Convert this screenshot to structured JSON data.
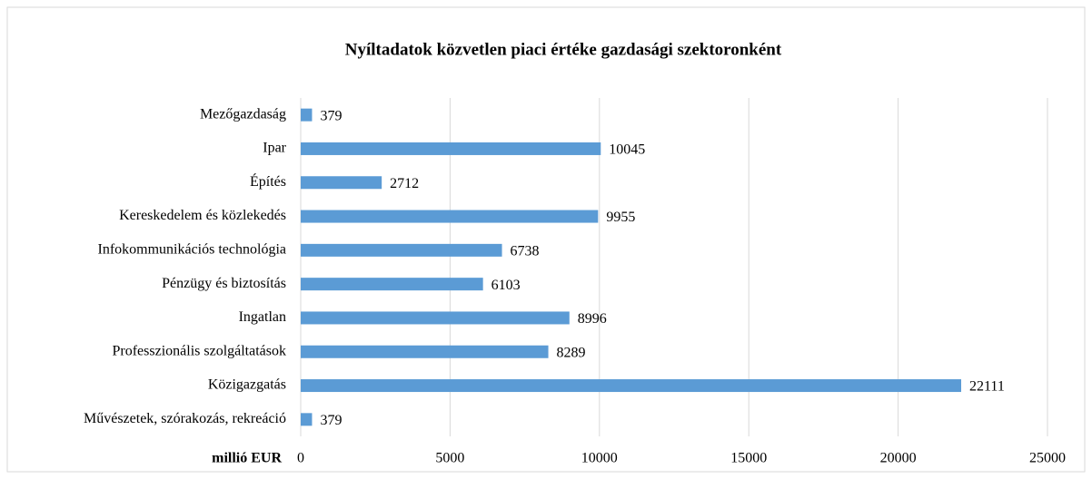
{
  "chart_data": {
    "type": "bar",
    "orientation": "horizontal",
    "title": "Nyíltadatok közvetlen piaci értéke gazdasági szektoronként",
    "xlabel": "millió EUR",
    "categories": [
      "Mezőgazdaság",
      "Ipar",
      "Építés",
      "Kereskedelem és közlekedés",
      "Infokommunikációs technológia",
      "Pénzügy és biztosítás",
      "Ingatlan",
      "Professzionális szolgáltatások",
      "Közigazgatás",
      "Művészetek, szórakozás, rekreáció"
    ],
    "values": [
      379,
      10045,
      2712,
      9955,
      6738,
      6103,
      8996,
      8289,
      22111,
      379
    ],
    "color": "#5b9bd5",
    "xlim": [
      0,
      25000
    ],
    "xticks": [
      0,
      5000,
      10000,
      15000,
      20000,
      25000
    ],
    "grid": true
  }
}
